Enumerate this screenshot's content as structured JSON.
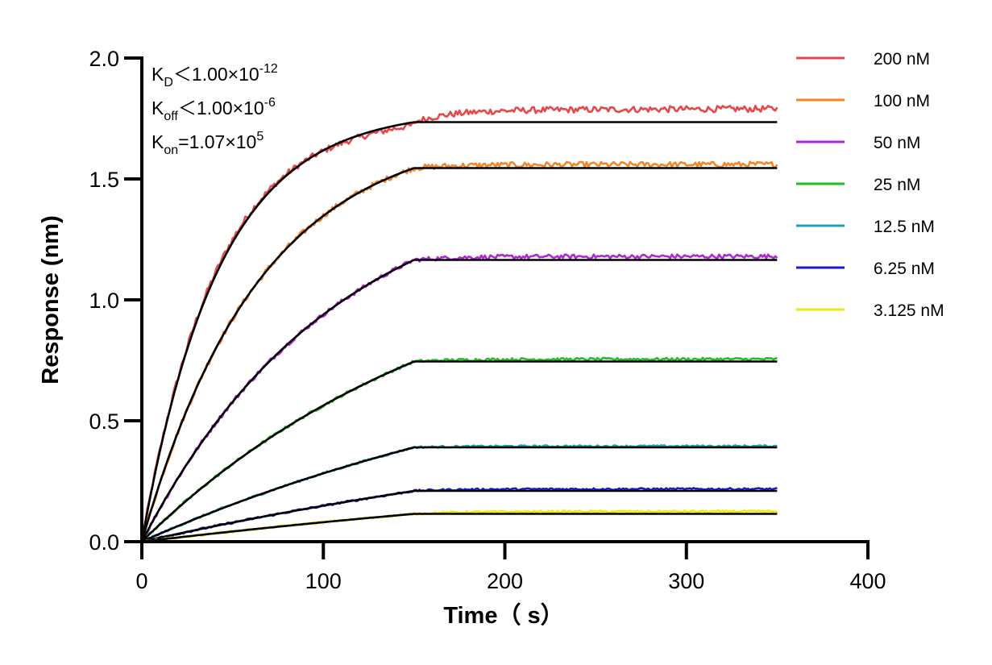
{
  "chart_data": {
    "type": "line",
    "title": "",
    "xlabel": "Time（ s）",
    "ylabel": "Response (nm)",
    "xlim": [
      0,
      400
    ],
    "ylim": [
      0,
      2.0
    ],
    "x_ticks": [
      0,
      100,
      200,
      300,
      400
    ],
    "x_tick_labels": [
      "0",
      "100",
      "200",
      "300",
      "400"
    ],
    "y_ticks": [
      0,
      0.5,
      1.0,
      1.5,
      2.0
    ],
    "y_tick_labels": [
      "0.0",
      "0.5",
      "1.0",
      "1.5",
      "2.0"
    ],
    "grid": false,
    "legend_position": "top-right",
    "association_end": 150,
    "x_end": 350,
    "annotations": [
      {
        "base": "K",
        "sub": "D",
        "text": "＜1.00×10",
        "sup": "-12"
      },
      {
        "base": "K",
        "sub": "off",
        "text": "＜1.00×10",
        "sup": "-6"
      },
      {
        "base": "K",
        "sub": "on",
        "text": "=1.07×10",
        "sup": "5"
      }
    ],
    "fit_color": "#000000",
    "series": [
      {
        "name": "200 nM",
        "color": "#E8474A",
        "k": 0.0236,
        "plateau": 1.735,
        "dissoc_end": 1.79
      },
      {
        "name": "100 nM",
        "color": "#F4862A",
        "k": 0.0154,
        "plateau": 1.545,
        "dissoc_end": 1.56
      },
      {
        "name": "50 nM",
        "color": "#B224D8",
        "k": 0.0094,
        "plateau": 1.165,
        "dissoc_end": 1.18
      },
      {
        "name": "25 nM",
        "color": "#1FBF1F",
        "k": 0.0057,
        "plateau": 0.745,
        "dissoc_end": 0.755
      },
      {
        "name": "12.5 nM",
        "color": "#1FA0B4",
        "k": 0.0036,
        "plateau": 0.39,
        "dissoc_end": 0.395
      },
      {
        "name": "6.25 nM",
        "color": "#1A1ACC",
        "k": 0.0025,
        "plateau": 0.21,
        "dissoc_end": 0.218
      },
      {
        "name": "3.125 nM",
        "color": "#F2E80A",
        "k": 0.002,
        "plateau": 0.115,
        "dissoc_end": 0.125
      }
    ]
  }
}
